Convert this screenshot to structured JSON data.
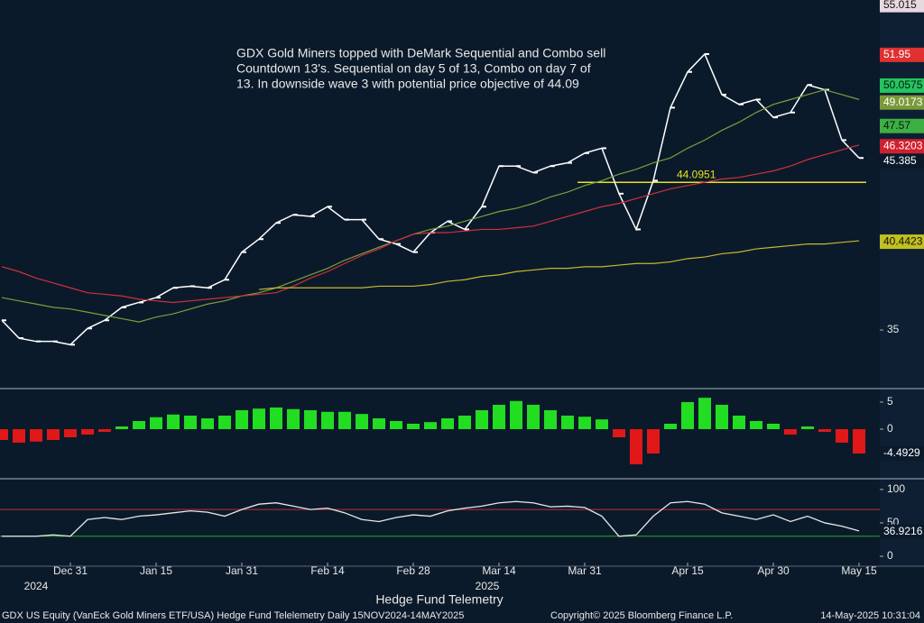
{
  "chart_data": [
    {
      "type": "line",
      "annotation": [
        "GDX Gold Miners topped with DeMark Sequential and Combo sell",
        "Countdown 13's.  Sequential on day 5 of 13, Combo on day 7 of",
        "13.  In downside wave 3 with potential price objective of 44.09"
      ],
      "categories": [
        null,
        null,
        null,
        null,
        "Dec 31",
        null,
        null,
        null,
        null,
        "Jan 15",
        null,
        null,
        null,
        null,
        "Jan 31",
        null,
        null,
        null,
        null,
        "Feb 14",
        null,
        null,
        null,
        null,
        "Feb 28",
        null,
        null,
        null,
        null,
        "Mar 14",
        null,
        null,
        null,
        null,
        "Mar 31",
        null,
        null,
        null,
        null,
        null,
        "Apr 15",
        null,
        null,
        null,
        null,
        "Apr 30",
        null,
        null,
        null,
        null,
        "May 15"
      ],
      "years": [
        "2024",
        "2025"
      ],
      "series": [
        {
          "color": "#ffffff",
          "values": [
            35.6,
            34.5,
            34.3,
            34.3,
            34.1,
            35.1,
            35.6,
            36.4,
            36.7,
            37.0,
            37.6,
            37.7,
            37.6,
            38.1,
            39.8,
            40.6,
            41.6,
            42.1,
            42.0,
            42.6,
            41.8,
            41.8,
            40.6,
            40.3,
            39.8,
            41.0,
            41.7,
            41.2,
            42.6,
            45.1,
            45.1,
            44.7,
            45.1,
            45.3,
            45.9,
            46.2,
            43.4,
            41.2,
            44.2,
            48.7,
            50.9,
            52.0,
            49.5,
            48.9,
            49.2,
            48.1,
            48.4,
            50.1,
            49.8,
            46.7,
            45.6
          ]
        },
        {
          "color": "#7aa03a",
          "values": [
            37.0,
            36.8,
            36.6,
            36.4,
            36.3,
            36.1,
            35.9,
            35.7,
            35.5,
            35.8,
            36.0,
            36.3,
            36.6,
            36.8,
            37.1,
            37.3,
            37.6,
            38.0,
            38.4,
            38.8,
            39.3,
            39.7,
            40.1,
            40.5,
            40.9,
            41.2,
            41.4,
            41.7,
            42.0,
            42.3,
            42.5,
            42.8,
            43.2,
            43.5,
            43.9,
            44.2,
            44.6,
            44.9,
            45.3,
            45.6,
            46.2,
            46.7,
            47.3,
            47.8,
            48.4,
            48.9,
            49.2,
            49.5,
            49.8,
            49.5,
            49.2
          ]
        },
        {
          "color": "#d0303c",
          "values": [
            38.9,
            38.6,
            38.2,
            37.9,
            37.6,
            37.3,
            37.2,
            37.1,
            36.9,
            36.8,
            36.7,
            36.8,
            36.9,
            37.0,
            37.1,
            37.2,
            37.3,
            37.7,
            38.2,
            38.6,
            39.1,
            39.6,
            40.0,
            40.5,
            40.9,
            41.0,
            41.0,
            41.1,
            41.2,
            41.2,
            41.3,
            41.4,
            41.7,
            42.0,
            42.3,
            42.6,
            42.8,
            43.1,
            43.4,
            43.7,
            43.9,
            44.1,
            44.3,
            44.4,
            44.6,
            44.8,
            45.1,
            45.5,
            45.8,
            46.1,
            46.4
          ]
        },
        {
          "color": "#c8b830",
          "values": [
            null,
            null,
            null,
            null,
            null,
            null,
            null,
            null,
            null,
            null,
            null,
            null,
            null,
            null,
            null,
            37.5,
            37.6,
            37.6,
            37.6,
            37.6,
            37.6,
            37.6,
            37.7,
            37.7,
            37.7,
            37.8,
            38.0,
            38.1,
            38.3,
            38.4,
            38.6,
            38.7,
            38.8,
            38.8,
            38.9,
            38.9,
            39.0,
            39.1,
            39.1,
            39.2,
            39.4,
            39.5,
            39.7,
            39.8,
            40.0,
            40.1,
            40.2,
            40.3,
            40.3,
            40.4,
            40.5
          ]
        }
      ],
      "ylim": [
        31.45,
        55.33
      ],
      "yticks": [
        35
      ],
      "levels": [
        {
          "value": 44.0951,
          "color": "#e8e020"
        }
      ],
      "markers": [
        {
          "value": 55.015,
          "color": "#e8d8e0"
        },
        {
          "value": 51.95,
          "color": "#e03030"
        },
        {
          "value": 50.0575,
          "color": "#22c55e"
        },
        {
          "value": 49.0173,
          "color": "#7a9a3a"
        },
        {
          "value": 47.57,
          "color": "#3cb043"
        },
        {
          "value": 46.3203,
          "color": "#d02030"
        },
        {
          "value": 45.385,
          "color": "#0b1a2b"
        },
        {
          "value": 40.4423,
          "color": "#c0c020"
        }
      ]
    },
    {
      "type": "bar",
      "pos_color": "#22dd22",
      "neg_color": "#e01818",
      "values": [
        -2,
        -2.5,
        -2.3,
        -2,
        -1.5,
        -1,
        -0.5,
        0.5,
        1.5,
        2.2,
        2.7,
        2.5,
        2,
        2.5,
        3.5,
        3.8,
        4,
        3.7,
        3.5,
        3.2,
        3.2,
        2.8,
        2,
        1.5,
        1,
        1.3,
        2,
        2.5,
        3.5,
        4.5,
        5.2,
        4.5,
        3.5,
        2.5,
        2.3,
        1.8,
        -1.5,
        -6.5,
        -4.5,
        1,
        5,
        5.8,
        4.5,
        2.5,
        1.5,
        1,
        -1,
        0.5,
        -0.5,
        -2.5,
        -4.5
      ],
      "ylim": [
        -8.67,
        7.33
      ],
      "yticks": [
        0,
        5
      ],
      "markers": [
        {
          "value": -4.4929,
          "color": "#0b1a2b"
        }
      ]
    },
    {
      "type": "line",
      "color": "#e8e8e8",
      "values": [
        30,
        30,
        30,
        32,
        30,
        55,
        58,
        55,
        60,
        62,
        65,
        68,
        66,
        60,
        70,
        78,
        80,
        75,
        70,
        72,
        65,
        55,
        52,
        58,
        62,
        60,
        68,
        72,
        75,
        80,
        82,
        80,
        74,
        75,
        73,
        60,
        30,
        32,
        60,
        80,
        82,
        78,
        65,
        60,
        55,
        62,
        52,
        60,
        50,
        45,
        38
      ],
      "ylim": [
        -13.5,
        112
      ],
      "yticks": [
        0,
        50,
        100
      ],
      "levels": [
        {
          "value": 70,
          "color": "#c03030"
        },
        {
          "value": 30,
          "color": "#20b020"
        }
      ],
      "markers": [
        {
          "value": 36.9216,
          "color": "#0b1a2b"
        }
      ]
    }
  ],
  "footer": {
    "title": "Hedge Fund Telemetry",
    "description": "GDX US Equity (VanEck Gold Miners ETF/USA) Hedge Fund Telelemetry  Daily 15NOV2024-14MAY2025",
    "copyright": "Copyright© 2025 Bloomberg Finance L.P.",
    "timestamp": "14-May-2025 10:31:04"
  }
}
